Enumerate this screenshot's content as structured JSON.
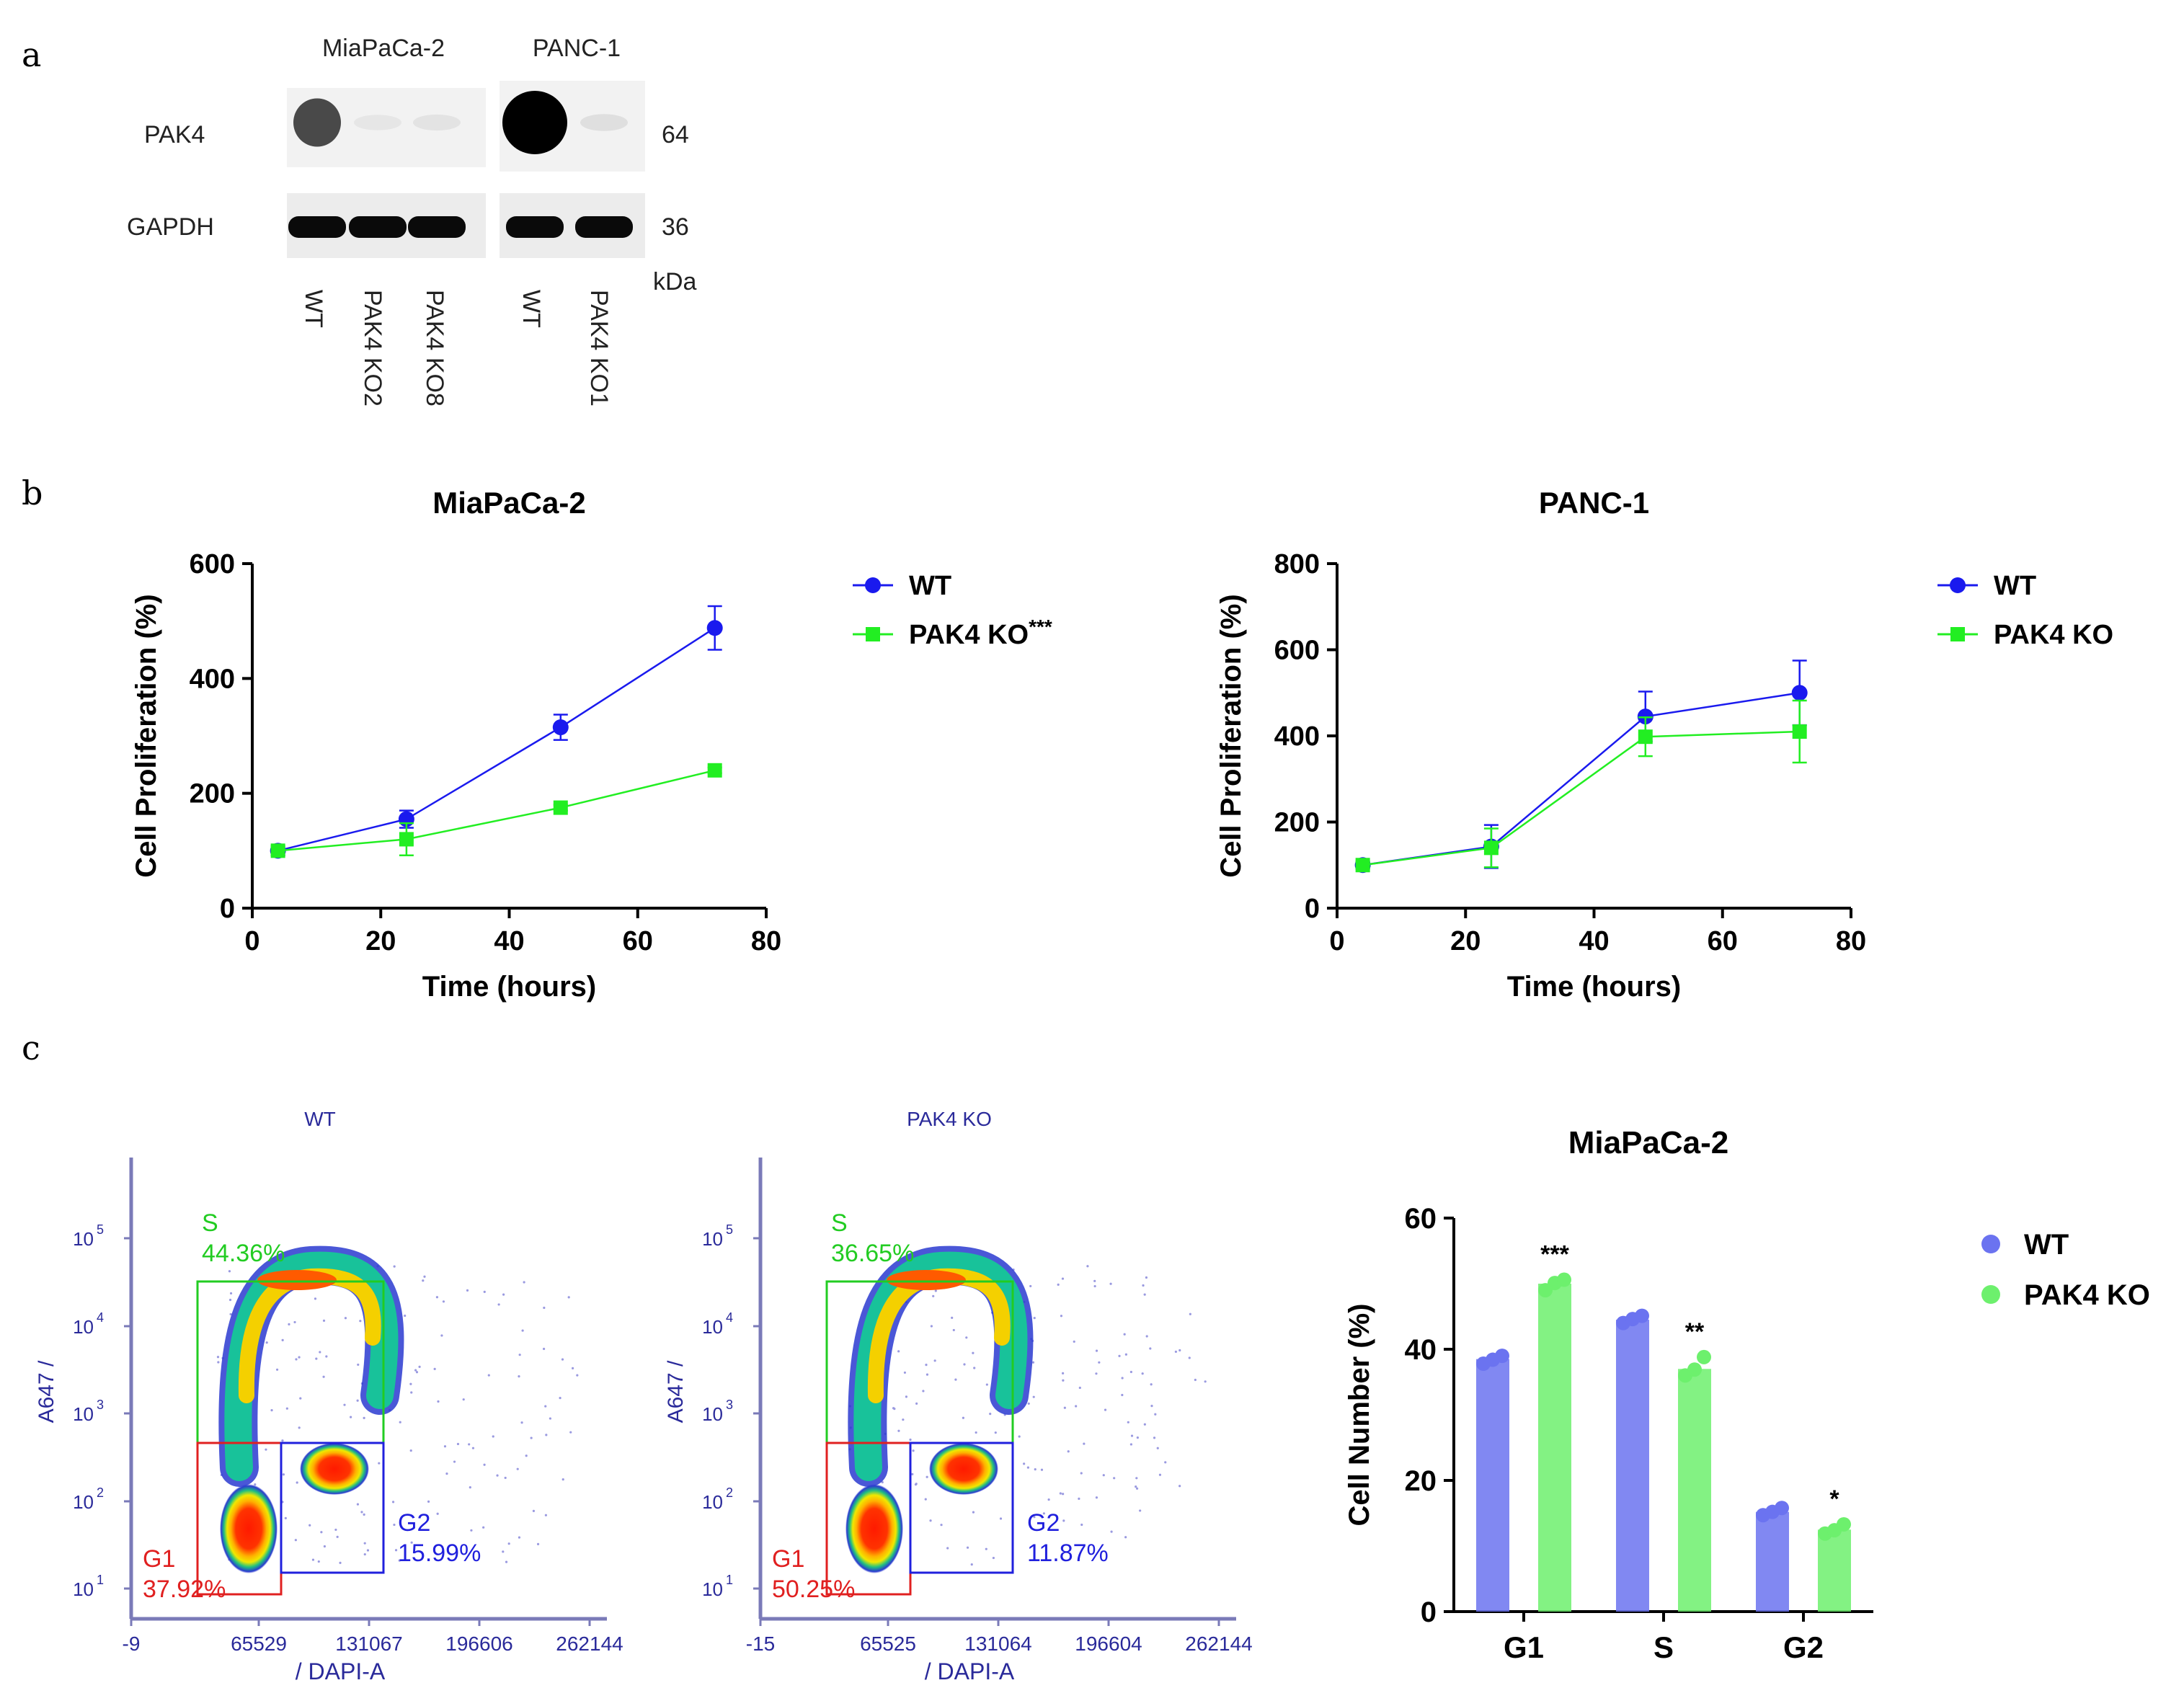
{
  "panel_labels": {
    "a": "a",
    "b": "b",
    "c": "c"
  },
  "western_blot": {
    "cell_lines": [
      "MiaPaCa-2",
      "PANC-1"
    ],
    "proteins": [
      "PAK4",
      "GAPDH"
    ],
    "mw_markers": [
      "64",
      "36"
    ],
    "mw_unit": "kDa",
    "lanes": [
      "WT",
      "PAK4 KO2",
      "PAK4 KO8",
      "WT",
      "PAK4 KO1"
    ],
    "pak4_band_intensity": [
      0.7,
      0.05,
      0.06,
      1.0,
      0.08
    ],
    "gapdh_band_intensity": [
      1.0,
      1.0,
      1.0,
      1.0,
      1.0
    ]
  },
  "chart_data": [
    {
      "type": "line",
      "title": "MiaPaCa-2",
      "xlabel": "Time (hours)",
      "ylabel": "Cell Proliferation (%)",
      "xlim": [
        0,
        80
      ],
      "ylim": [
        0,
        600
      ],
      "xticks": [
        "0",
        "20",
        "40",
        "60",
        "80"
      ],
      "yticks": [
        "0",
        "200",
        "400",
        "600"
      ],
      "x": [
        4,
        24,
        48,
        72
      ],
      "series": [
        {
          "name": "WT",
          "values": [
            100,
            155,
            315,
            488
          ],
          "errors": [
            8,
            15,
            22,
            38
          ],
          "color": "#1a1aee",
          "marker": "circle"
        },
        {
          "name": "PAK4 KO",
          "values": [
            100,
            120,
            175,
            240
          ],
          "errors": [
            8,
            28,
            5,
            5
          ],
          "color": "#22ee22",
          "marker": "square"
        }
      ],
      "legend_labels": [
        "WT",
        "PAK4 KO"
      ],
      "legend_annotation": "***"
    },
    {
      "type": "line",
      "title": "PANC-1",
      "xlabel": "Time (hours)",
      "ylabel": "Cell Proliferation (%)",
      "xlim": [
        0,
        80
      ],
      "ylim": [
        0,
        800
      ],
      "xticks": [
        "0",
        "20",
        "40",
        "60",
        "80"
      ],
      "yticks": [
        "0",
        "200",
        "400",
        "600",
        "800"
      ],
      "x": [
        4,
        24,
        48,
        72
      ],
      "series": [
        {
          "name": "WT",
          "values": [
            100,
            143,
            445,
            500
          ],
          "errors": [
            8,
            50,
            58,
            75
          ],
          "color": "#1a1aee",
          "marker": "circle"
        },
        {
          "name": "PAK4 KO",
          "values": [
            100,
            140,
            398,
            410
          ],
          "errors": [
            8,
            45,
            45,
            72
          ],
          "color": "#22ee22",
          "marker": "square"
        }
      ],
      "legend_labels": [
        "WT",
        "PAK4 KO"
      ]
    },
    {
      "type": "bar",
      "title": "MiaPaCa-2",
      "xlabel": "",
      "ylabel": "Cell Number (%)",
      "ylim": [
        0,
        60
      ],
      "yticks": [
        "0",
        "20",
        "40",
        "60"
      ],
      "categories": [
        "G1",
        "S",
        "G2"
      ],
      "series": [
        {
          "name": "WT",
          "values": [
            38.5,
            44.5,
            15.2
          ],
          "points": [
            [
              37.8,
              38.4,
              39.0
            ],
            [
              44.0,
              44.6,
              45.1
            ],
            [
              14.7,
              15.2,
              15.8
            ]
          ],
          "color": "#6b73f0"
        },
        {
          "name": "PAK4 KO",
          "values": [
            50.0,
            37.0,
            12.5
          ],
          "points": [
            [
              49.0,
              50.1,
              50.6
            ],
            [
              36.0,
              36.9,
              38.8
            ],
            [
              11.9,
              12.4,
              13.3
            ]
          ],
          "color": "#6df06d"
        }
      ],
      "significance": [
        "***",
        "**",
        "*"
      ],
      "legend_labels": [
        "WT",
        "PAK4 KO"
      ]
    }
  ],
  "flow": [
    {
      "title": "WT",
      "y_axis_label": "A647  /",
      "x_axis_label": "/  DAPI-A",
      "x_ticks": [
        "-9",
        "65529",
        "131067",
        "196606",
        "262144"
      ],
      "y_ticks": [
        "10",
        "10",
        "10",
        "10",
        "10"
      ],
      "y_exps": [
        "1",
        "2",
        "3",
        "4",
        "5"
      ],
      "gates": [
        {
          "name": "S",
          "pct": "44.36%",
          "color": "#22cc22"
        },
        {
          "name": "G1",
          "pct": "37.92%",
          "color": "#e02020"
        },
        {
          "name": "G2",
          "pct": "15.99%",
          "color": "#2020dd"
        }
      ]
    },
    {
      "title": "PAK4 KO",
      "y_axis_label": "A647  /",
      "x_axis_label": "/  DAPI-A",
      "x_ticks": [
        "-15",
        "65525",
        "131064",
        "196604",
        "262144"
      ],
      "y_ticks": [
        "10",
        "10",
        "10",
        "10",
        "10"
      ],
      "y_exps": [
        "1",
        "2",
        "3",
        "4",
        "5"
      ],
      "gates": [
        {
          "name": "S",
          "pct": "36.65%",
          "color": "#22cc22"
        },
        {
          "name": "G1",
          "pct": "50.25%",
          "color": "#e02020"
        },
        {
          "name": "G2",
          "pct": "11.87%",
          "color": "#2020dd"
        }
      ]
    }
  ]
}
